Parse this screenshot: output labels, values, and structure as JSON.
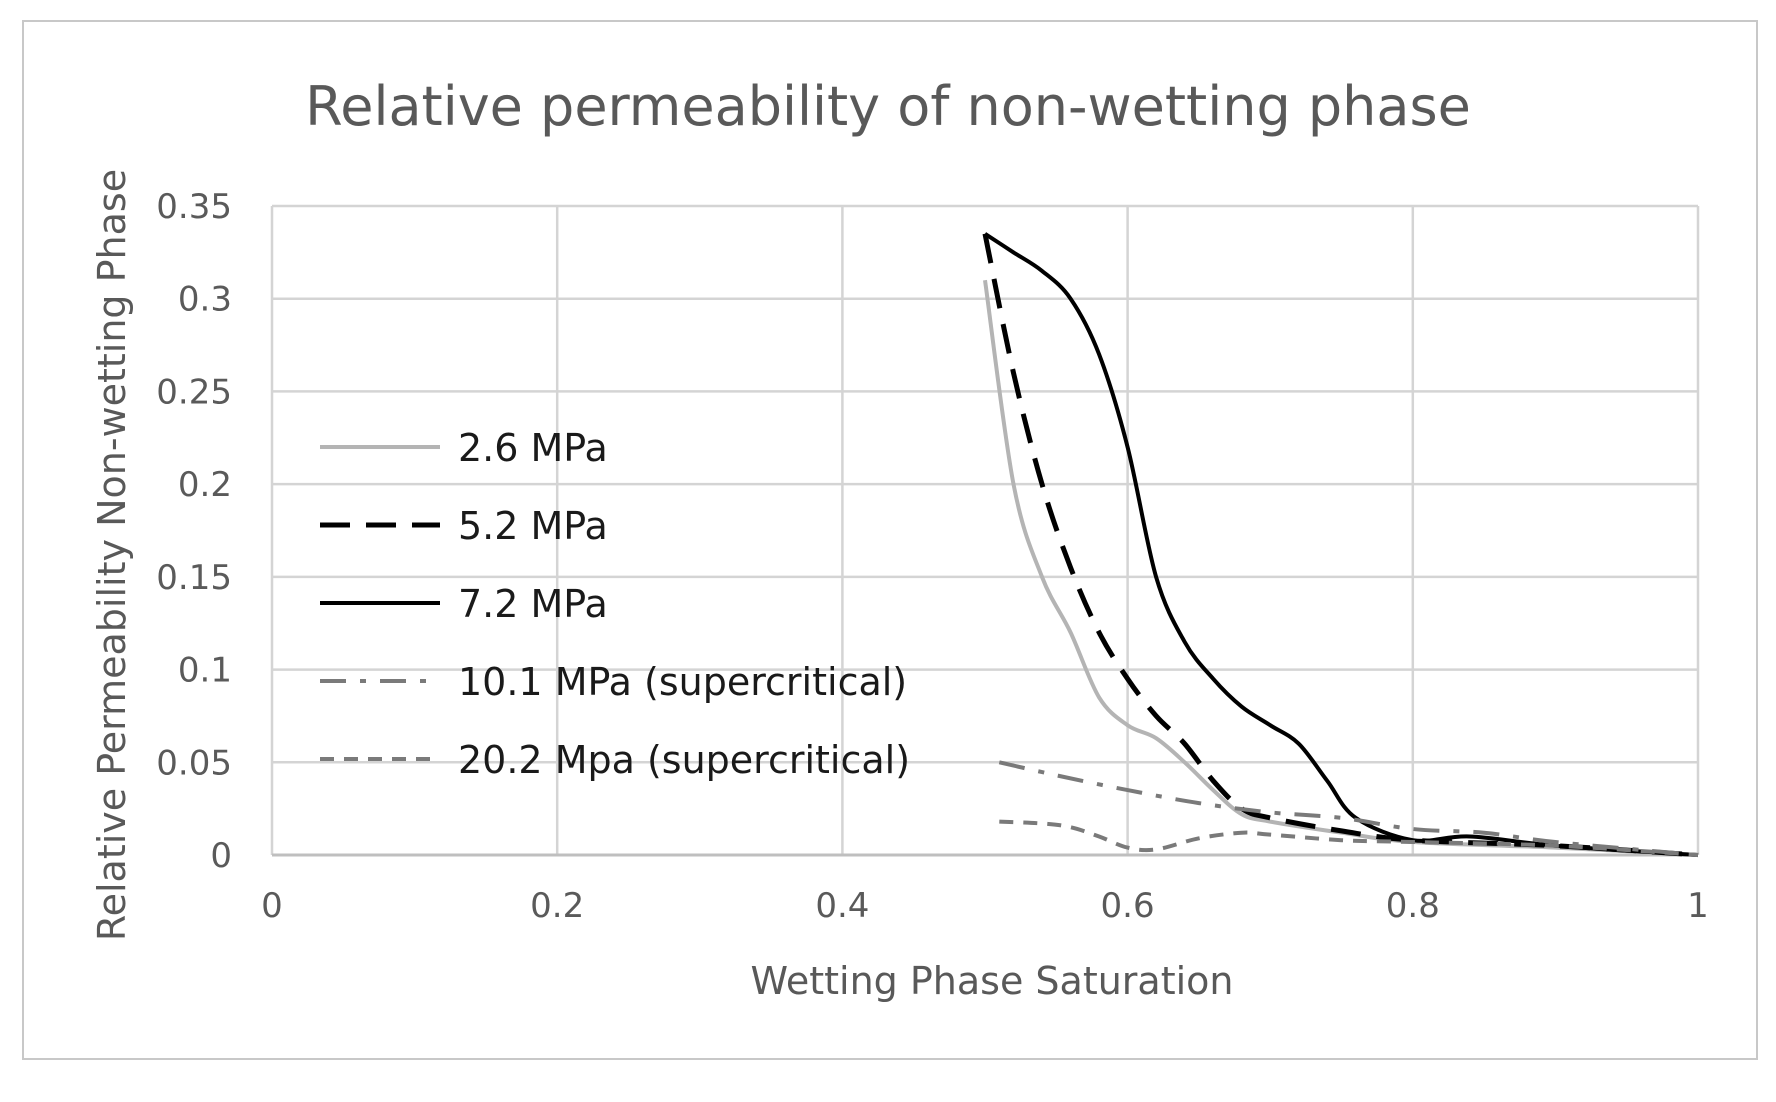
{
  "chart_data": {
    "type": "line",
    "title": "Relative permeability of non-wetting phase",
    "xlabel": "Wetting Phase Saturation",
    "ylabel": "Relative Permeability Non-wetting Phase",
    "xlim": [
      0,
      1
    ],
    "ylim": [
      0,
      0.35
    ],
    "grid": true,
    "legend_position": "left",
    "x_ticks": [
      0,
      0.2,
      0.4,
      0.6,
      0.8,
      1
    ],
    "x_tick_labels": [
      "0",
      "0.2",
      "0.4",
      "0.6",
      "0.8",
      "1"
    ],
    "y_ticks": [
      0,
      0.05,
      0.1,
      0.15,
      0.2,
      0.25,
      0.3,
      0.35
    ],
    "y_tick_labels": [
      "0",
      "0.05",
      "0.1",
      "0.15",
      "0.2",
      "0.25",
      "0.3",
      "0.35"
    ],
    "series": [
      {
        "name": "2.6 MPa",
        "style": "solid",
        "color": "#b4b4b4",
        "x": [
          0.5,
          0.52,
          0.54,
          0.56,
          0.58,
          0.6,
          0.62,
          0.64,
          0.66,
          0.68,
          0.7,
          0.75,
          0.8,
          0.9,
          1.0
        ],
        "y": [
          0.31,
          0.2,
          0.15,
          0.12,
          0.085,
          0.07,
          0.063,
          0.05,
          0.035,
          0.022,
          0.018,
          0.012,
          0.007,
          0.004,
          0.0
        ]
      },
      {
        "name": "5.2 MPa",
        "style": "dashed",
        "color": "#000000",
        "x": [
          0.5,
          0.52,
          0.54,
          0.56,
          0.58,
          0.6,
          0.62,
          0.64,
          0.66,
          0.68,
          0.7,
          0.75,
          0.8,
          0.9,
          1.0
        ],
        "y": [
          0.335,
          0.26,
          0.2,
          0.155,
          0.12,
          0.095,
          0.075,
          0.06,
          0.04,
          0.025,
          0.02,
          0.013,
          0.008,
          0.005,
          0.0
        ]
      },
      {
        "name": "7.2 MPa",
        "style": "solid",
        "color": "#000000",
        "x": [
          0.5,
          0.52,
          0.54,
          0.56,
          0.58,
          0.6,
          0.62,
          0.64,
          0.66,
          0.68,
          0.7,
          0.72,
          0.74,
          0.76,
          0.8,
          0.84,
          0.9,
          1.0
        ],
        "y": [
          0.335,
          0.325,
          0.315,
          0.3,
          0.27,
          0.22,
          0.15,
          0.115,
          0.095,
          0.08,
          0.07,
          0.06,
          0.04,
          0.02,
          0.008,
          0.01,
          0.005,
          0.0
        ]
      },
      {
        "name": "10.1 MPa (supercritical)",
        "style": "dashdot",
        "color": "#7a7a7a",
        "x": [
          0.51,
          0.55,
          0.6,
          0.65,
          0.7,
          0.75,
          0.8,
          0.85,
          0.9,
          1.0
        ],
        "y": [
          0.05,
          0.043,
          0.035,
          0.028,
          0.023,
          0.02,
          0.014,
          0.012,
          0.007,
          0.0
        ]
      },
      {
        "name": "20.2 Mpa (supercritical)",
        "style": "dashed-short",
        "color": "#7a7a7a",
        "x": [
          0.51,
          0.54,
          0.56,
          0.58,
          0.6,
          0.62,
          0.65,
          0.68,
          0.7,
          0.75,
          0.8,
          0.9,
          1.0
        ],
        "y": [
          0.018,
          0.017,
          0.015,
          0.01,
          0.004,
          0.003,
          0.009,
          0.012,
          0.011,
          0.008,
          0.007,
          0.005,
          0.0
        ]
      }
    ]
  }
}
